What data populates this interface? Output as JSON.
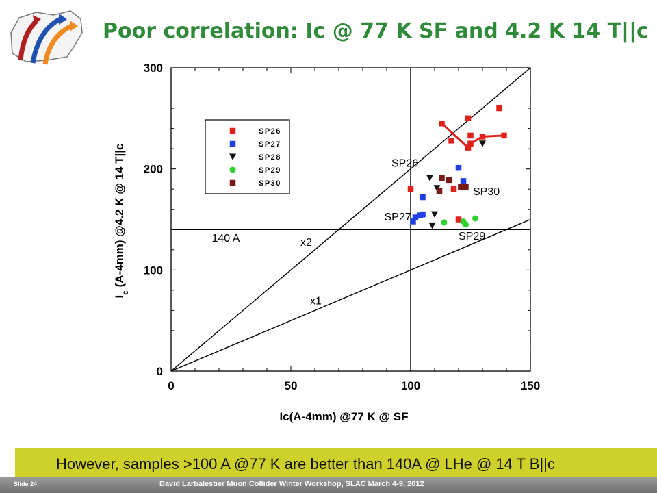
{
  "slide": {
    "title": "Poor correlation:  Ic @ 77 K SF and 4.2 K  14 T||c",
    "note": "However, samples >100 A @77 K are better than 140A  @ LHe @ 14 T B||c",
    "slide_number": "Slide 24",
    "footer": "David Larbalestier    Muon Collider Winter Workshop,  SLAC March 4-9, 2012"
  },
  "chart_data": {
    "type": "scatter",
    "title": "",
    "xlabel": "Ic(A-4mm) @77 K @ SF",
    "ylabel_main": "I",
    "ylabel_sub": "c",
    "ylabel_rest": " (A-4mm)  @4.2 K @ 14 T||c",
    "xlim": [
      0,
      150
    ],
    "ylim": [
      0,
      300
    ],
    "xticks": [
      0,
      50,
      100,
      150
    ],
    "yticks": [
      0,
      100,
      200,
      300
    ],
    "grid": false,
    "legend_position": "top-left",
    "series": [
      {
        "name": "SP26",
        "marker": "square",
        "color": "#e0201b",
        "points": [
          [
            100,
            180
          ],
          [
            113,
            245
          ],
          [
            117,
            228
          ],
          [
            118,
            180
          ],
          [
            120,
            150
          ],
          [
            121,
            182
          ],
          [
            124,
            250
          ],
          [
            124,
            221
          ],
          [
            125,
            233
          ],
          [
            125,
            225
          ],
          [
            130,
            232
          ],
          [
            137,
            260
          ],
          [
            139,
            233
          ]
        ],
        "connect": [
          [
            [
              113,
              245
            ],
            [
              124,
              221
            ],
            [
              125,
              225
            ],
            [
              130,
              232
            ],
            [
              139,
              233
            ]
          ]
        ]
      },
      {
        "name": "SP27",
        "marker": "square",
        "color": "#1f3ee6",
        "points": [
          [
            101,
            148
          ],
          [
            102,
            152
          ],
          [
            104,
            154
          ],
          [
            105,
            155
          ],
          [
            105,
            172
          ],
          [
            120,
            201
          ],
          [
            122,
            188
          ]
        ]
      },
      {
        "name": "SP28",
        "marker": "triangle-down",
        "color": "#111111",
        "points": [
          [
            108,
            191
          ],
          [
            109,
            144
          ],
          [
            110,
            155
          ],
          [
            111,
            181
          ],
          [
            130,
            225
          ]
        ]
      },
      {
        "name": "SP29",
        "marker": "circle",
        "color": "#2fd12f",
        "points": [
          [
            114,
            147
          ],
          [
            122,
            148
          ],
          [
            123,
            145
          ],
          [
            127,
            151
          ]
        ]
      },
      {
        "name": "SP30",
        "marker": "square",
        "color": "#7a1a16",
        "points": [
          [
            112,
            178
          ],
          [
            113,
            191
          ],
          [
            116,
            189
          ],
          [
            121,
            182
          ],
          [
            123,
            182
          ]
        ]
      }
    ],
    "reference_lines": [
      {
        "label": "x2",
        "from": [
          0,
          0
        ],
        "to": [
          150,
          300
        ]
      },
      {
        "label": "x1",
        "from": [
          0,
          0
        ],
        "to": [
          150,
          150
        ]
      },
      {
        "label": "140 A",
        "from": [
          0,
          140
        ],
        "to": [
          150,
          140
        ]
      },
      {
        "label": "",
        "from": [
          100,
          0
        ],
        "to": [
          100,
          300
        ]
      }
    ],
    "annotations": [
      {
        "text": "SP26",
        "x": 92,
        "y": 202
      },
      {
        "text": "SP30",
        "x": 126,
        "y": 174
      },
      {
        "text": "SP27",
        "x": 89,
        "y": 149
      },
      {
        "text": "SP29",
        "x": 120,
        "y": 130
      },
      {
        "text": "140 A",
        "x": 17,
        "y": 128
      },
      {
        "text": "x2",
        "x": 54,
        "y": 124
      },
      {
        "text": "x1",
        "x": 58,
        "y": 66
      }
    ]
  }
}
